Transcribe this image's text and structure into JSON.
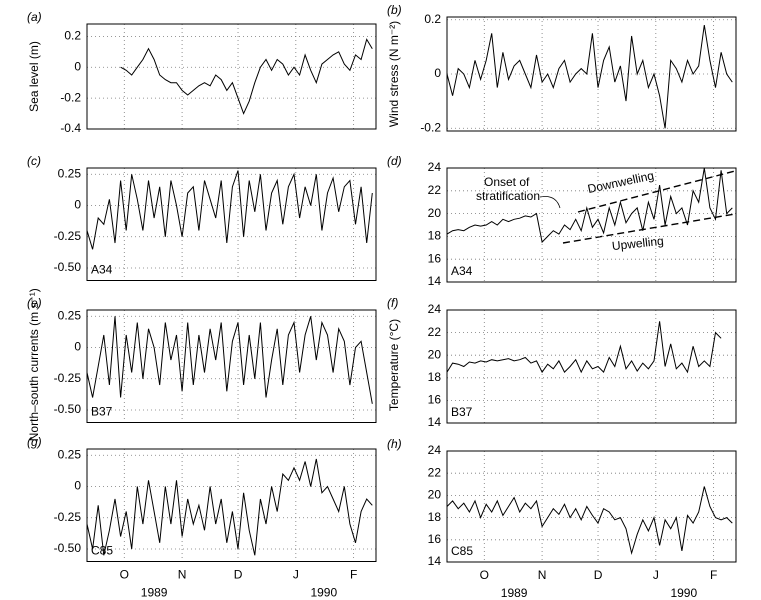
{
  "chart_data": [
    {
      "type": "line",
      "panel_label": "(a)",
      "ylabel": "Sea level (m)",
      "x": [
        0,
        3,
        6,
        9,
        12,
        15,
        18,
        21,
        24,
        27,
        30,
        33,
        36,
        39,
        42,
        45,
        48,
        51,
        54,
        57,
        60,
        63,
        66,
        69,
        72,
        75,
        78,
        81,
        84,
        87,
        90,
        93,
        96,
        99,
        102,
        105,
        108,
        111,
        114,
        117,
        120,
        123,
        126,
        129,
        132,
        135,
        138,
        141,
        144,
        147,
        150,
        153
      ],
      "values": [
        null,
        null,
        null,
        null,
        null,
        null,
        0,
        -0.02,
        -0.05,
        0,
        0.05,
        0.12,
        0.05,
        -0.05,
        -0.08,
        -0.1,
        -0.1,
        -0.15,
        -0.18,
        -0.15,
        -0.12,
        -0.1,
        -0.12,
        -0.05,
        -0.08,
        -0.15,
        -0.1,
        -0.2,
        -0.3,
        -0.22,
        -0.1,
        0,
        0.05,
        -0.02,
        0.05,
        0.02,
        -0.05,
        0,
        -0.05,
        0.08,
        -0.02,
        -0.1,
        0.02,
        0.05,
        0.08,
        0.1,
        0.02,
        -0.02,
        0.08,
        0.05,
        0.18,
        0.12
      ],
      "color": "#000000",
      "xlim": [
        0,
        155
      ],
      "xticks": [
        20,
        51,
        81,
        112,
        143
      ],
      "ylim": [
        -0.4,
        0.28
      ],
      "yticks": [
        -0.4,
        -0.2,
        0,
        0.2
      ],
      "grid": true
    },
    {
      "type": "line",
      "panel_label": "(b)",
      "ylabel": "Wind stress (N m⁻²)",
      "x": [
        0,
        3,
        6,
        9,
        12,
        15,
        18,
        21,
        24,
        27,
        30,
        33,
        36,
        39,
        42,
        45,
        48,
        51,
        54,
        57,
        60,
        63,
        66,
        69,
        72,
        75,
        78,
        81,
        84,
        87,
        90,
        93,
        96,
        99,
        102,
        105,
        108,
        111,
        114,
        117,
        120,
        123,
        126,
        129,
        132,
        135,
        138,
        141,
        144,
        147,
        150,
        153
      ],
      "values": [
        0,
        -0.08,
        0.02,
        0,
        -0.05,
        0.05,
        -0.02,
        0.05,
        0.15,
        -0.05,
        0.08,
        -0.02,
        0.03,
        0.05,
        0,
        -0.05,
        0.07,
        -0.03,
        0,
        -0.05,
        0.02,
        0.05,
        -0.03,
        0,
        0.02,
        0,
        0.15,
        -0.05,
        0.05,
        0.1,
        -0.03,
        0.03,
        -0.1,
        0.14,
        0,
        0.05,
        -0.05,
        0,
        -0.08,
        -0.2,
        0.05,
        0.02,
        -0.03,
        0.05,
        0,
        0.03,
        0.18,
        0.05,
        -0.05,
        0.08,
        0,
        -0.03
      ],
      "color": "#000000",
      "xlim": [
        0,
        155
      ],
      "xticks": [
        20,
        51,
        81,
        112,
        143
      ],
      "ylim": [
        -0.21,
        0.21
      ],
      "yticks": [
        -0.2,
        0,
        0.2
      ],
      "grid": true
    },
    {
      "type": "line",
      "panel_label": "(c)",
      "station": "A34",
      "x": [
        0,
        3,
        6,
        9,
        12,
        15,
        18,
        21,
        24,
        27,
        30,
        33,
        36,
        39,
        42,
        45,
        48,
        51,
        54,
        57,
        60,
        63,
        66,
        69,
        72,
        75,
        78,
        81,
        84,
        87,
        90,
        93,
        96,
        99,
        102,
        105,
        108,
        111,
        114,
        117,
        120,
        123,
        126,
        129,
        132,
        135,
        138,
        141,
        144,
        147,
        150,
        153
      ],
      "values": [
        -0.2,
        -0.35,
        -0.1,
        -0.15,
        0.05,
        -0.3,
        0.2,
        -0.2,
        0.25,
        0.05,
        -0.2,
        0.2,
        -0.1,
        0.15,
        -0.25,
        0.2,
        0,
        -0.25,
        0.1,
        0.15,
        -0.2,
        0.2,
        0.05,
        -0.1,
        0.2,
        -0.3,
        0.15,
        0.28,
        -0.25,
        0.2,
        -0.05,
        0.25,
        -0.2,
        0.1,
        0.2,
        -0.15,
        0.15,
        0.25,
        -0.1,
        0.15,
        0,
        0.25,
        -0.2,
        0.1,
        0.22,
        -0.05,
        0.15,
        0.2,
        -0.15,
        0.15,
        -0.3,
        0.1
      ],
      "color": "#000000",
      "xlim": [
        0,
        155
      ],
      "xticks": [
        20,
        51,
        81,
        112,
        143
      ],
      "ylim": [
        -0.6,
        0.3
      ],
      "yticks": [
        {
          "value": -0.5,
          "label": "-0.50"
        },
        -0.25,
        0,
        0.25
      ],
      "grid": true
    },
    {
      "type": "line",
      "panel_label": "(d)",
      "station": "A34",
      "annotations": [
        "Onset of",
        "stratification",
        "Downwelling",
        "Upwelling"
      ],
      "x": [
        0,
        3,
        6,
        9,
        12,
        15,
        18,
        21,
        24,
        27,
        30,
        33,
        36,
        39,
        42,
        45,
        48,
        51,
        54,
        57,
        60,
        63,
        66,
        69,
        72,
        75,
        78,
        81,
        84,
        87,
        90,
        93,
        96,
        99,
        102,
        105,
        108,
        111,
        114,
        117,
        120,
        123,
        126,
        129,
        132,
        135,
        138,
        141,
        144,
        147,
        150,
        153
      ],
      "values": [
        18.2,
        18.5,
        18.6,
        18.5,
        18.8,
        19,
        18.9,
        19,
        19.3,
        19,
        19.5,
        19.3,
        19.5,
        19.6,
        19.8,
        19.7,
        20,
        17.5,
        18,
        18.5,
        18.2,
        19,
        18.6,
        19.5,
        18.5,
        20.5,
        18.8,
        19.5,
        18.3,
        20.5,
        19,
        21,
        19.2,
        20,
        20.5,
        18.5,
        21,
        19.5,
        22.5,
        19,
        21.5,
        20,
        20.5,
        19,
        22,
        21,
        24,
        20.5,
        19.5,
        23.8,
        20,
        20.5
      ],
      "color": "#000000",
      "xlim": [
        0,
        155
      ],
      "xticks": [
        20,
        51,
        81,
        112,
        143
      ],
      "ylim": [
        14,
        24
      ],
      "yticks": [
        14,
        16,
        18,
        20,
        22,
        24
      ],
      "grid": true
    },
    {
      "type": "line",
      "panel_label": "(e)",
      "station": "B37",
      "ylabel": "North–south currents (m s⁻¹)",
      "x": [
        0,
        3,
        6,
        9,
        12,
        15,
        18,
        21,
        24,
        27,
        30,
        33,
        36,
        39,
        42,
        45,
        48,
        51,
        54,
        57,
        60,
        63,
        66,
        69,
        72,
        75,
        78,
        81,
        84,
        87,
        90,
        93,
        96,
        99,
        102,
        105,
        108,
        111,
        114,
        117,
        120,
        123,
        126,
        129,
        132,
        135,
        138,
        141,
        144,
        147,
        150,
        153
      ],
      "values": [
        -0.2,
        -0.4,
        -0.15,
        0.1,
        -0.3,
        0.25,
        -0.4,
        0.1,
        -0.2,
        0.2,
        -0.25,
        0.15,
        0,
        -0.3,
        0.2,
        -0.1,
        0.1,
        -0.35,
        0.2,
        -0.3,
        0.1,
        -0.2,
        0.15,
        -0.1,
        0.2,
        -0.35,
        0.05,
        0.2,
        -0.3,
        0.1,
        -0.25,
        0.2,
        -0.4,
        -0.1,
        0.15,
        -0.3,
        0.1,
        0.2,
        -0.2,
        0.1,
        0.25,
        -0.1,
        0.2,
        0.1,
        -0.2,
        0.15,
        0.05,
        -0.3,
        0,
        0.05,
        -0.2,
        -0.45
      ],
      "color": "#000000",
      "xlim": [
        0,
        155
      ],
      "xticks": [
        20,
        51,
        81,
        112,
        143
      ],
      "ylim": [
        -0.6,
        0.3
      ],
      "yticks": [
        {
          "value": -0.5,
          "label": "-0.50"
        },
        -0.25,
        0,
        0.25
      ],
      "grid": true
    },
    {
      "type": "line",
      "panel_label": "(f)",
      "station": "B37",
      "ylabel": "Temperature (°C)",
      "x": [
        0,
        3,
        6,
        9,
        12,
        15,
        18,
        21,
        24,
        27,
        30,
        33,
        36,
        39,
        42,
        45,
        48,
        51,
        54,
        57,
        60,
        63,
        66,
        69,
        72,
        75,
        78,
        81,
        84,
        87,
        90,
        93,
        96,
        99,
        102,
        105,
        108,
        111,
        114,
        117,
        120,
        123,
        126,
        129,
        132,
        135,
        138,
        141,
        144,
        147,
        150,
        153
      ],
      "values": [
        18.5,
        19.3,
        19.2,
        19,
        19.4,
        19.3,
        19.5,
        19.4,
        19.6,
        19.5,
        19.6,
        19.7,
        19.5,
        19.6,
        19.8,
        19.3,
        19.5,
        18.5,
        19.2,
        18.8,
        19.5,
        18.5,
        19,
        19.6,
        18.5,
        19.5,
        18.8,
        19,
        18.5,
        19.8,
        19,
        20.8,
        18.8,
        19.5,
        18.6,
        19.3,
        18.8,
        19.5,
        23,
        19,
        21,
        18.8,
        19.3,
        18.5,
        20.8,
        19,
        19.5,
        19,
        22,
        21.5,
        null,
        null
      ],
      "color": "#000000",
      "xlim": [
        0,
        155
      ],
      "xticks": [
        20,
        51,
        81,
        112,
        143
      ],
      "ylim": [
        14,
        24
      ],
      "yticks": [
        14,
        16,
        18,
        20,
        22,
        24
      ],
      "grid": true
    },
    {
      "type": "line",
      "panel_label": "(g)",
      "station": "C85",
      "year_labels": [
        "1989",
        "1990"
      ],
      "x": [
        0,
        3,
        6,
        9,
        12,
        15,
        18,
        21,
        24,
        27,
        30,
        33,
        36,
        39,
        42,
        45,
        48,
        51,
        54,
        57,
        60,
        63,
        66,
        69,
        72,
        75,
        78,
        81,
        84,
        87,
        90,
        93,
        96,
        99,
        102,
        105,
        108,
        111,
        114,
        117,
        120,
        123,
        126,
        129,
        132,
        135,
        138,
        141,
        144,
        147,
        150,
        153
      ],
      "values": [
        -0.3,
        -0.5,
        -0.15,
        -0.55,
        -0.35,
        -0.1,
        -0.4,
        -0.2,
        -0.5,
        0,
        -0.3,
        0.05,
        -0.2,
        -0.45,
        0,
        -0.3,
        0.05,
        -0.4,
        -0.1,
        -0.3,
        -0.15,
        -0.35,
        0,
        -0.3,
        -0.1,
        -0.45,
        -0.2,
        -0.5,
        -0.05,
        -0.35,
        -0.55,
        -0.1,
        -0.3,
        0,
        -0.2,
        0.1,
        0.05,
        0.15,
        0.05,
        0.2,
        0,
        0.22,
        -0.05,
        0,
        -0.1,
        -0.2,
        0,
        -0.3,
        -0.45,
        -0.2,
        -0.1,
        -0.15
      ],
      "color": "#000000",
      "xlim": [
        0,
        155
      ],
      "xticks": [
        {
          "value": 20,
          "label": "O"
        },
        {
          "value": 51,
          "label": "N"
        },
        {
          "value": 81,
          "label": "D"
        },
        {
          "value": 112,
          "label": "J"
        },
        {
          "value": 143,
          "label": "F"
        }
      ],
      "ylim": [
        -0.6,
        0.3
      ],
      "yticks": [
        {
          "value": -0.5,
          "label": "-0.50"
        },
        -0.25,
        0,
        0.25
      ],
      "grid": true
    },
    {
      "type": "line",
      "panel_label": "(h)",
      "station": "C85",
      "year_labels": [
        "1989",
        "1990"
      ],
      "x": [
        0,
        3,
        6,
        9,
        12,
        15,
        18,
        21,
        24,
        27,
        30,
        33,
        36,
        39,
        42,
        45,
        48,
        51,
        54,
        57,
        60,
        63,
        66,
        69,
        72,
        75,
        78,
        81,
        84,
        87,
        90,
        93,
        96,
        99,
        102,
        105,
        108,
        111,
        114,
        117,
        120,
        123,
        126,
        129,
        132,
        135,
        138,
        141,
        144,
        147,
        150,
        153
      ],
      "values": [
        19,
        19.5,
        18.8,
        19.3,
        18.5,
        19.5,
        18,
        19.2,
        18.5,
        19.5,
        18.2,
        19,
        19.8,
        18.5,
        19.3,
        18.8,
        19.5,
        17.2,
        18,
        18.8,
        18.3,
        19.2,
        18,
        18.8,
        17.8,
        19,
        18.2,
        17.5,
        18.8,
        18.5,
        17.8,
        18,
        17,
        14.8,
        16.5,
        17.8,
        16.8,
        18,
        15.5,
        17.8,
        17,
        18,
        15,
        18.2,
        17.5,
        18.5,
        20.8,
        19,
        18,
        17.8,
        18,
        17.5
      ],
      "color": "#000000",
      "xlim": [
        0,
        155
      ],
      "xticks": [
        {
          "value": 20,
          "label": "O"
        },
        {
          "value": 51,
          "label": "N"
        },
        {
          "value": 81,
          "label": "D"
        },
        {
          "value": 112,
          "label": "J"
        },
        {
          "value": 143,
          "label": "F"
        }
      ],
      "ylim": [
        14,
        24
      ],
      "yticks": [
        14,
        16,
        18,
        20,
        22,
        24
      ],
      "grid": true
    }
  ]
}
